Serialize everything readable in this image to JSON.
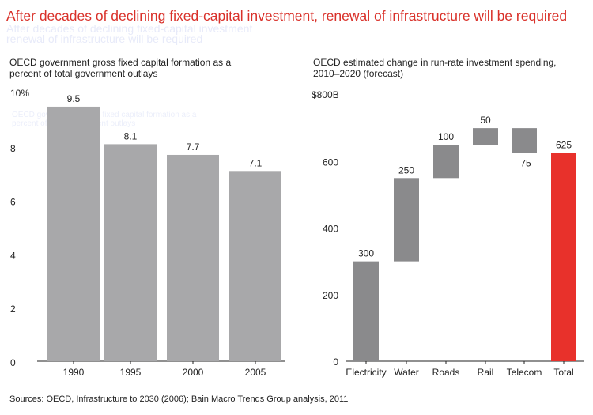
{
  "headline": "After decades of declining fixed-capital investment, renewal of infrastructure will be required",
  "source": "Sources: OECD, Infrastructure to 2030 (2006); Bain Macro Trends Group analysis, 2011",
  "colors": {
    "headline": "#d9312a",
    "bar_gray_left": "#a8a8aa",
    "bar_gray_right": "#8a8a8c",
    "bar_total": "#e8312b",
    "axis": "#222222"
  },
  "chart_data": [
    {
      "type": "bar",
      "title": "OECD government gross fixed capital formation as a percent of  total government outlays",
      "categories": [
        "1990",
        "1995",
        "2000",
        "2005"
      ],
      "values": [
        9.5,
        8.1,
        7.7,
        7.1
      ],
      "value_labels": [
        "9.5",
        "8.1",
        "7.7",
        "7.1"
      ],
      "ylim": [
        0,
        10
      ],
      "yticks": [
        0,
        2,
        4,
        6,
        8,
        10
      ],
      "ytick_labels": [
        "0",
        "2",
        "4",
        "6",
        "8",
        "10%"
      ],
      "xlabel": "",
      "ylabel": ""
    },
    {
      "type": "bar",
      "subtype": "waterfall",
      "title": "OECD estimated change in run-rate investment spending, 2010–2020 (forecast)",
      "categories": [
        "Electricity",
        "Water",
        "Roads",
        "Rail",
        "Telecom",
        "Total"
      ],
      "values": [
        300,
        250,
        100,
        50,
        -75,
        625
      ],
      "value_labels": [
        "300",
        "250",
        "100",
        "50",
        "-75",
        "625"
      ],
      "is_total": [
        false,
        false,
        false,
        false,
        false,
        true
      ],
      "ylim": [
        0,
        800
      ],
      "yticks": [
        0,
        200,
        400,
        600,
        800
      ],
      "ytick_labels": [
        "0",
        "200",
        "400",
        "600",
        "$800B"
      ],
      "xlabel": "",
      "ylabel": ""
    }
  ]
}
